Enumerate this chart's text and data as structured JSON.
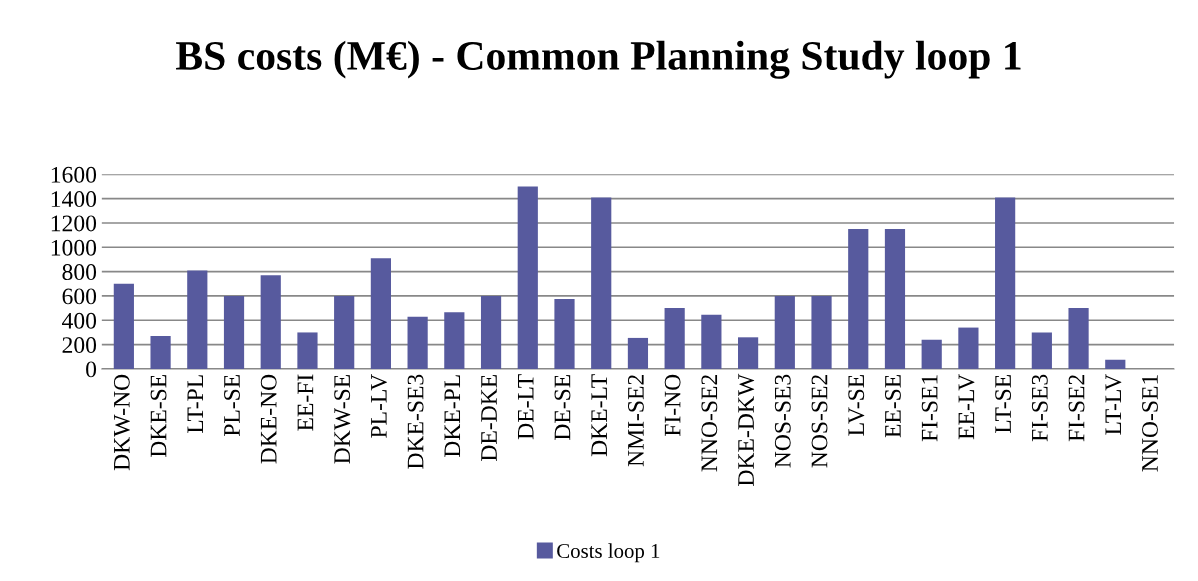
{
  "chart_data": {
    "type": "bar",
    "title": "BS costs (M€) - Common Planning Study loop 1",
    "categories": [
      "DKW-NO",
      "DKE-SE",
      "LT-PL",
      "PL-SE",
      "DKE-NO",
      "EE-FI",
      "DKW-SE",
      "PL-LV",
      "DKE-SE3",
      "DKE-PL",
      "DE-DKE",
      "DE-LT",
      "DE-SE",
      "DKE-LT",
      "NMI-SE2",
      "FI-NO",
      "NNO-SE2",
      "DKE-DKW",
      "NOS-SE3",
      "NOS-SE2",
      "LV-SE",
      "EE-SE",
      "FI-SE1",
      "EE-LV",
      "LT-SE",
      "FI-SE3",
      "FI-SE2",
      "LT-LV",
      "NNO-SE1"
    ],
    "series": [
      {
        "name": "Costs loop 1",
        "color": "#575a9e",
        "values": [
          700,
          270,
          810,
          600,
          770,
          300,
          600,
          910,
          430,
          465,
          600,
          1500,
          575,
          1410,
          255,
          500,
          445,
          260,
          600,
          600,
          1150,
          1150,
          240,
          340,
          1410,
          300,
          500,
          75,
          0
        ]
      }
    ],
    "ylim": [
      0,
      1600
    ],
    "yticks": [
      0,
      200,
      400,
      600,
      800,
      1000,
      1200,
      1400,
      1600
    ],
    "grid": "y",
    "legend": "bottom"
  }
}
